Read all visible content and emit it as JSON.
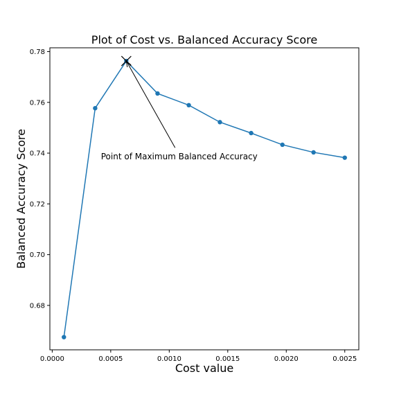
{
  "chart_data": {
    "type": "line",
    "title": "Plot of Cost vs. Balanced Accuracy Score",
    "xlabel": "Cost value",
    "ylabel": "Balanced Accuracy Score",
    "x": [
      0.0001,
      0.000367,
      0.000633,
      0.0009,
      0.001167,
      0.001433,
      0.0017,
      0.001967,
      0.002233,
      0.0025
    ],
    "series": [
      {
        "values": [
          0.6675,
          0.7577,
          0.7763,
          0.7635,
          0.7589,
          0.7522,
          0.7479,
          0.7433,
          0.7403,
          0.7382
        ],
        "color": "#1f77b4",
        "marker": "circle"
      }
    ],
    "xlim": [
      -2e-05,
      0.00262
    ],
    "ylim": [
      0.6625,
      0.7815
    ],
    "xticks": [
      0.0,
      0.0005,
      0.001,
      0.0015,
      0.002,
      0.0025
    ],
    "xtick_labels": [
      "0.0000",
      "0.0005",
      "0.0010",
      "0.0015",
      "0.0020",
      "0.0025"
    ],
    "yticks": [
      0.68,
      0.7,
      0.72,
      0.74,
      0.76,
      0.78
    ],
    "ytick_labels": [
      "0.68",
      "0.70",
      "0.72",
      "0.74",
      "0.76",
      "0.78"
    ],
    "grid": false,
    "annotation": {
      "text": "Point of Maximum Balanced Accuracy",
      "point": [
        0.000633,
        0.7763
      ],
      "text_anchor": [
        0.00105,
        0.7375
      ],
      "arrow_color": "#000000"
    },
    "max_marker": {
      "shape": "x",
      "color": "#000000"
    }
  }
}
